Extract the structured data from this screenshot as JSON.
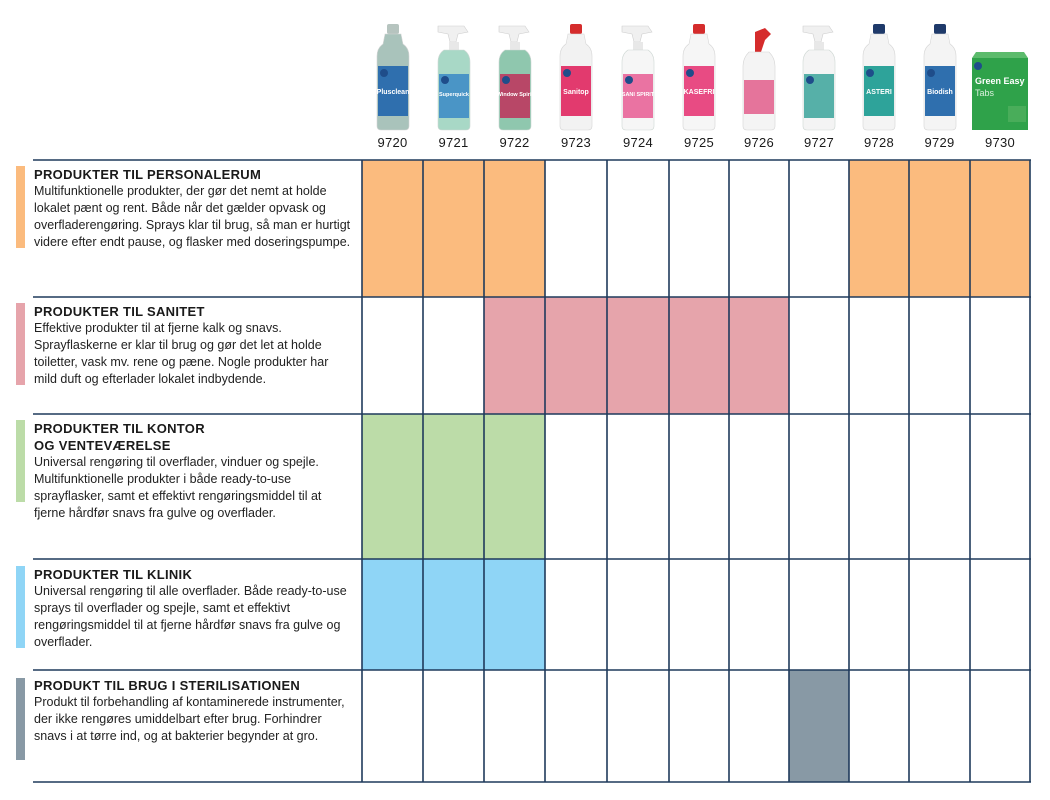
{
  "products": [
    {
      "code": "9720",
      "label": "Plusclean",
      "icon": "bottle-icon",
      "body": "#a9c3bb",
      "label_bg": "#2f6fae",
      "cap": "#b6c4bf",
      "kind": "bottle"
    },
    {
      "code": "9721",
      "label": "Superquick",
      "icon": "spray-bottle-icon",
      "body": "#a8d8c6",
      "label_bg": "#3a8ac6",
      "cap": "#f0f0f0",
      "kind": "spray"
    },
    {
      "code": "9722",
      "label": "Window Spirit",
      "icon": "spray-bottle-icon",
      "body": "#8fc7ae",
      "label_bg": "#c0305a",
      "cap": "#f0f0f0",
      "kind": "spray"
    },
    {
      "code": "9723",
      "label": "Sanitop",
      "icon": "bottle-icon",
      "body": "#f2f2f2",
      "label_bg": "#e23a6e",
      "cap": "#d52c2c",
      "kind": "bottle"
    },
    {
      "code": "9724",
      "label": "SANI SPIRIT",
      "icon": "spray-bottle-icon",
      "body": "#f6f6f6",
      "label_bg": "#e85c93",
      "cap": "#f0f0f0",
      "kind": "spray"
    },
    {
      "code": "9725",
      "label": "KASEFRI",
      "icon": "bottle-icon",
      "body": "#f6f6f6",
      "label_bg": "#e84b83",
      "cap": "#d52c2c",
      "kind": "bottle"
    },
    {
      "code": "9726",
      "label": "",
      "icon": "toilet-cleaner-bottle-icon",
      "body": "#f4f4f4",
      "label_bg": "#e04a7e",
      "cap": "#d52c2c",
      "kind": "duck"
    },
    {
      "code": "9727",
      "label": "",
      "icon": "spray-bottle-icon",
      "body": "#f4f4f4",
      "label_bg": "#3aa39a",
      "cap": "#f0f0f0",
      "kind": "spray"
    },
    {
      "code": "9728",
      "label": "ASTERI",
      "icon": "bottle-icon",
      "body": "#f4f4f4",
      "label_bg": "#2ea39a",
      "cap": "#1f3a6a",
      "kind": "bottle"
    },
    {
      "code": "9729",
      "label": "Biodish",
      "icon": "bottle-icon",
      "body": "#f4f4f4",
      "label_bg": "#2f6fae",
      "cap": "#1f3a6a",
      "kind": "bottle"
    },
    {
      "code": "9730",
      "label": "Green Easy",
      "sublabel": "Tabs",
      "icon": "box-icon",
      "body": "#2fa24a",
      "label_bg": "#2fa24a",
      "cap": "#2fa24a",
      "kind": "box"
    }
  ],
  "rows": [
    {
      "title": "PRODUKTER TIL PERSONALERUM",
      "desc": "Multifunktionelle produkter, der gør det nemt at holde lokalet pænt og rent. Både når det gælder opvask og overfladerengøring. Sprays klar til brug, så man er hurtigt videre efter endt pause, og flasker med doseringspumpe.",
      "color": "#fbbb7e",
      "filled": [
        true,
        true,
        true,
        false,
        false,
        false,
        false,
        false,
        true,
        true,
        true
      ]
    },
    {
      "title": "PRODUKTER TIL SANITET",
      "desc": "Effektive produkter til at fjerne kalk og snavs. Sprayflaskerne er klar til brug og gør det let at holde toiletter, vask mv. rene og pæne. Nogle produkter har mild duft og efterlader lokalet indbydende.",
      "color": "#e6a4ab",
      "filled": [
        false,
        false,
        true,
        true,
        true,
        true,
        true,
        false,
        false,
        false,
        false
      ]
    },
    {
      "title": "PRODUKTER TIL KONTOR\nOG VENTEVÆRELSE",
      "desc": "Universal rengøring til overflader, vinduer og spejle. Multifunktionelle produkter i både ready-to-use sprayflasker, samt et effektivt rengøringsmiddel til at fjerne hårdfør snavs fra gulve og overflader.",
      "color": "#bcdca8",
      "filled": [
        true,
        true,
        true,
        false,
        false,
        false,
        false,
        false,
        false,
        false,
        false
      ]
    },
    {
      "title": "PRODUKTER TIL KLINIK",
      "desc": "Universal rengøring til alle overflader. Både ready-to-use sprays til overflader og spejle, samt et effektivt rengøringsmiddel til at fjerne hårdfør snavs fra gulve og overflader.",
      "color": "#8fd5f6",
      "filled": [
        true,
        true,
        true,
        false,
        false,
        false,
        false,
        false,
        false,
        false,
        false
      ]
    },
    {
      "title": "PRODUKT TIL BRUG I STERILISATIONEN",
      "desc": "Produkt til forbehandling af kontaminerede instrumenter, der ikke rengøres umiddelbart efter brug. Forhindrer snavs i at tørre ind, og at bakterier begynder at gro.",
      "color": "#8899a5",
      "filled": [
        false,
        false,
        false,
        false,
        false,
        false,
        false,
        true,
        false,
        false,
        false
      ]
    }
  ],
  "colors": {
    "grid_line": "#1f3a5c"
  }
}
